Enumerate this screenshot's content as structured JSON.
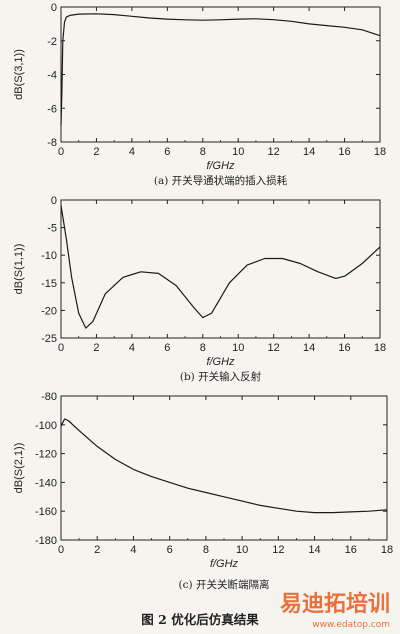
{
  "chart_data": [
    {
      "type": "line",
      "caption": "(a) 开关导通状端的插入损耗",
      "xlabel": "f/GHz",
      "ylabel": "dB(S(3,1))",
      "xlim": [
        0,
        18
      ],
      "ylim": [
        -8,
        0
      ],
      "xticks": [
        0,
        2,
        4,
        6,
        8,
        10,
        12,
        14,
        16,
        18
      ],
      "yticks": [
        0,
        -2,
        -4,
        -6,
        -8
      ],
      "grid": false,
      "series": [
        {
          "x": [
            0.0,
            0.05,
            0.1,
            0.2,
            0.3,
            0.5,
            1,
            2,
            3,
            4,
            5,
            6,
            7,
            8,
            9,
            10,
            11,
            12,
            13,
            14,
            15,
            16,
            17,
            18
          ],
          "values": [
            -7.0,
            -5.0,
            -2.0,
            -0.9,
            -0.6,
            -0.5,
            -0.42,
            -0.4,
            -0.45,
            -0.55,
            -0.65,
            -0.72,
            -0.76,
            -0.78,
            -0.76,
            -0.72,
            -0.7,
            -0.75,
            -0.85,
            -1.0,
            -1.1,
            -1.2,
            -1.35,
            -1.7
          ]
        }
      ]
    },
    {
      "type": "line",
      "caption": "(b) 开关输入反射",
      "xlabel": "f/GHz",
      "ylabel": "dB(S(1,1))",
      "xlim": [
        0,
        18
      ],
      "ylim": [
        -25,
        0
      ],
      "xticks": [
        0,
        2,
        4,
        6,
        8,
        10,
        12,
        14,
        16,
        18
      ],
      "yticks": [
        0,
        -5,
        -10,
        -15,
        -20,
        -25
      ],
      "grid": false,
      "series": [
        {
          "x": [
            0.0,
            0.3,
            0.6,
            1.0,
            1.4,
            1.8,
            2.5,
            3.5,
            4.5,
            5.5,
            6.5,
            7.5,
            8.0,
            8.5,
            9.5,
            10.5,
            11.5,
            12.5,
            13.5,
            14.5,
            15.5,
            16.0,
            17.0,
            18.0
          ],
          "values": [
            -1.0,
            -7.0,
            -14.0,
            -20.5,
            -23.2,
            -22.0,
            -17.0,
            -14.0,
            -13.0,
            -13.3,
            -15.5,
            -19.5,
            -21.3,
            -20.5,
            -15.0,
            -11.8,
            -10.6,
            -10.6,
            -11.5,
            -13.0,
            -14.2,
            -13.8,
            -11.5,
            -8.5
          ]
        }
      ]
    },
    {
      "type": "line",
      "caption": "(c) 开关关断端隔离",
      "xlabel": "f/GHz",
      "ylabel": "dB(S(2,1))",
      "xlim": [
        0,
        18
      ],
      "ylim": [
        -180,
        -80
      ],
      "xticks": [
        0,
        2,
        4,
        6,
        8,
        10,
        12,
        14,
        16,
        18
      ],
      "yticks": [
        -80,
        -100,
        -120,
        -140,
        -160,
        -180
      ],
      "grid": false,
      "series": [
        {
          "x": [
            0.0,
            0.2,
            0.4,
            1,
            2,
            3,
            4,
            5,
            6,
            7,
            8,
            9,
            10,
            11,
            12,
            13,
            14,
            15,
            16,
            17,
            18
          ],
          "values": [
            -101,
            -96,
            -97,
            -104,
            -115,
            -124,
            -131,
            -136,
            -140,
            -144,
            -147,
            -150,
            -153,
            -156,
            -158,
            -160,
            -161,
            -161,
            -160.5,
            -160,
            -159
          ]
        }
      ]
    }
  ],
  "figure_title": "图 2   优化后仿真结果",
  "watermark": {
    "brand": "易迪拓培训",
    "url": "www.edatop.com"
  },
  "colors": {
    "line": "#1a1a1a",
    "background": "#f6f4ef",
    "watermark": "#e85a1c"
  }
}
